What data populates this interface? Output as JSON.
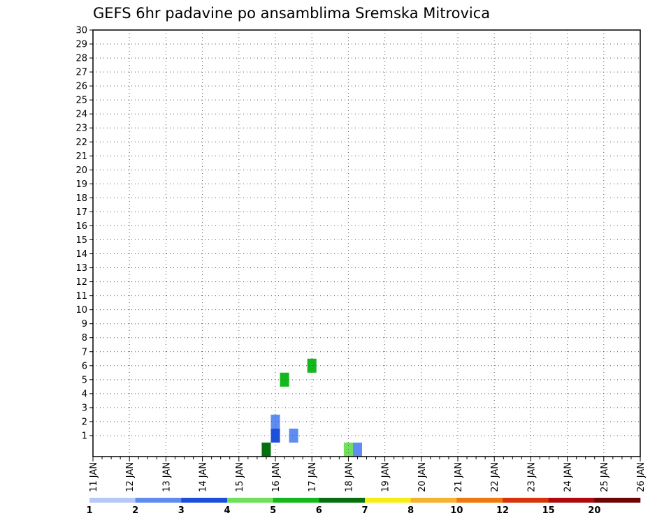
{
  "chart_data": {
    "type": "heatmap",
    "title": "GEFS 6hr padavine po ansamblima Sremska Mitrovica",
    "xlabel": "",
    "ylabel": "",
    "x_ticks": [
      "11 JAN",
      "12 JAN",
      "13 JAN",
      "14 JAN",
      "15 JAN",
      "16 JAN",
      "17 JAN",
      "18 JAN",
      "19 JAN",
      "20 JAN",
      "21 JAN",
      "22 JAN",
      "23 JAN",
      "24 JAN",
      "25 JAN",
      "26 JAN"
    ],
    "x_start": "11 JAN",
    "x_end": "26 JAN",
    "x_step": "6hr",
    "y_ticks": [
      "1",
      "2",
      "3",
      "4",
      "5",
      "6",
      "7",
      "8",
      "9",
      "10",
      "11",
      "12",
      "13",
      "14",
      "15",
      "16",
      "17",
      "18",
      "19",
      "20",
      "21",
      "22",
      "23",
      "24",
      "25",
      "26",
      "27",
      "28",
      "29",
      "30"
    ],
    "grid": true,
    "colorbar": {
      "labels": [
        "1",
        "2",
        "3",
        "4",
        "5",
        "6",
        "7",
        "8",
        "10",
        "12",
        "15",
        "20"
      ],
      "colors": [
        "#b5c8f8",
        "#5e8cf0",
        "#1b4fdc",
        "#6ee05a",
        "#13b81c",
        "#06700f",
        "#f6ee13",
        "#f7b22f",
        "#f0790f",
        "#d8340b",
        "#ad0b0b",
        "#6e0505"
      ]
    },
    "cells": [
      {
        "time": "15 JAN 18z",
        "member": 0,
        "level": 5
      },
      {
        "time": "16 JAN 00z",
        "member": 1,
        "level": 2
      },
      {
        "time": "16 JAN 00z",
        "member": 2,
        "level": 1
      },
      {
        "time": "16 JAN 06z",
        "member": 5,
        "level": 4
      },
      {
        "time": "16 JAN 12z",
        "member": 1,
        "level": 1
      },
      {
        "time": "17 JAN 00z",
        "member": 6,
        "level": 4
      },
      {
        "time": "18 JAN 00z",
        "member": 0,
        "level": 3
      },
      {
        "time": "18 JAN 06z",
        "member": 0,
        "level": 1
      }
    ]
  }
}
